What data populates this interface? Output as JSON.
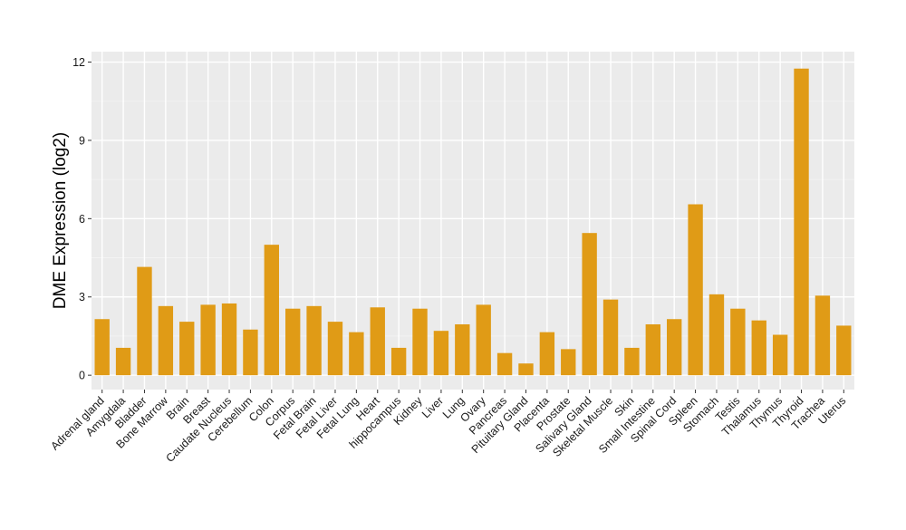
{
  "chart_data": {
    "type": "bar",
    "title": "",
    "xlabel": "",
    "ylabel": "DME Expression (log2)",
    "ylim": [
      -0.55,
      12.4
    ],
    "yticks": [
      0,
      3,
      6,
      9,
      12
    ],
    "grid": true,
    "legend": "none",
    "colors": {
      "bar": "#E09B16",
      "panel": "#EBEBEB",
      "grid_major": "#FFFFFF",
      "grid_minor": "#F4F4F4"
    },
    "categories": [
      "Adrenal gland",
      "Amygdala",
      "Bladder",
      "Bone Marrow",
      "Brain",
      "Breast",
      "Caudate Nucleus",
      "Cerebellum",
      "Colon",
      "Corpus",
      "Fetal Brain",
      "Fetal Liver",
      "Fetal Lung",
      "Heart",
      "hippocampus",
      "Kidney",
      "Liver",
      "Lung",
      "Ovary",
      "Pancreas",
      "Pituitary Gland",
      "Placenta",
      "Prostate",
      "Salivary Gland",
      "Skeletal Muscle",
      "Skin",
      "Small Intestine",
      "Spinal Cord",
      "Spleen",
      "Stomach",
      "Testis",
      "Thalamus",
      "Thymus",
      "Thyroid",
      "Trachea",
      "Uterus"
    ],
    "values": [
      2.15,
      1.05,
      4.15,
      2.65,
      2.05,
      2.7,
      2.75,
      1.75,
      5.0,
      2.55,
      2.65,
      2.05,
      1.65,
      2.6,
      1.05,
      2.55,
      1.7,
      1.95,
      2.7,
      0.85,
      0.45,
      1.65,
      1.0,
      5.45,
      2.9,
      1.05,
      1.95,
      2.15,
      6.55,
      3.1,
      2.55,
      2.1,
      1.55,
      11.75,
      3.05,
      1.9
    ]
  }
}
